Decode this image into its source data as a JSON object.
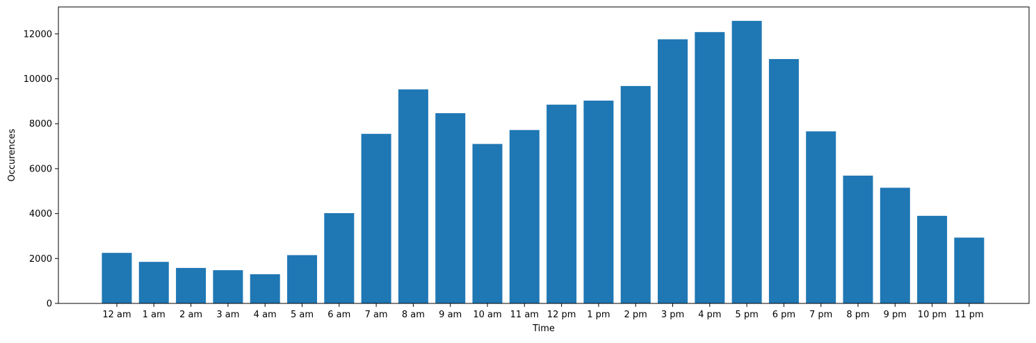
{
  "chart_data": {
    "type": "bar",
    "title": "",
    "xlabel": "Time",
    "ylabel": "Occurences",
    "categories": [
      "12 am",
      "1 am",
      "2 am",
      "3 am",
      "4 am",
      "5 am",
      "6 am",
      "7 am",
      "8 am",
      "9 am",
      "10 am",
      "11 am",
      "12 pm",
      "1 pm",
      "2 pm",
      "3 pm",
      "4 pm",
      "5 pm",
      "6 pm",
      "7 pm",
      "8 pm",
      "9 pm",
      "10 pm",
      "11 pm"
    ],
    "values": [
      2250,
      1850,
      1580,
      1480,
      1300,
      2150,
      4020,
      7550,
      9530,
      8470,
      7100,
      7720,
      8850,
      9030,
      9680,
      11760,
      12080,
      12580,
      10880,
      7660,
      5690,
      5150,
      3900,
      2930
    ],
    "ylim": [
      0,
      13200
    ],
    "yticks": [
      0,
      2000,
      4000,
      6000,
      8000,
      10000,
      12000
    ],
    "grid": false,
    "bar_color": "#1f77b4"
  }
}
